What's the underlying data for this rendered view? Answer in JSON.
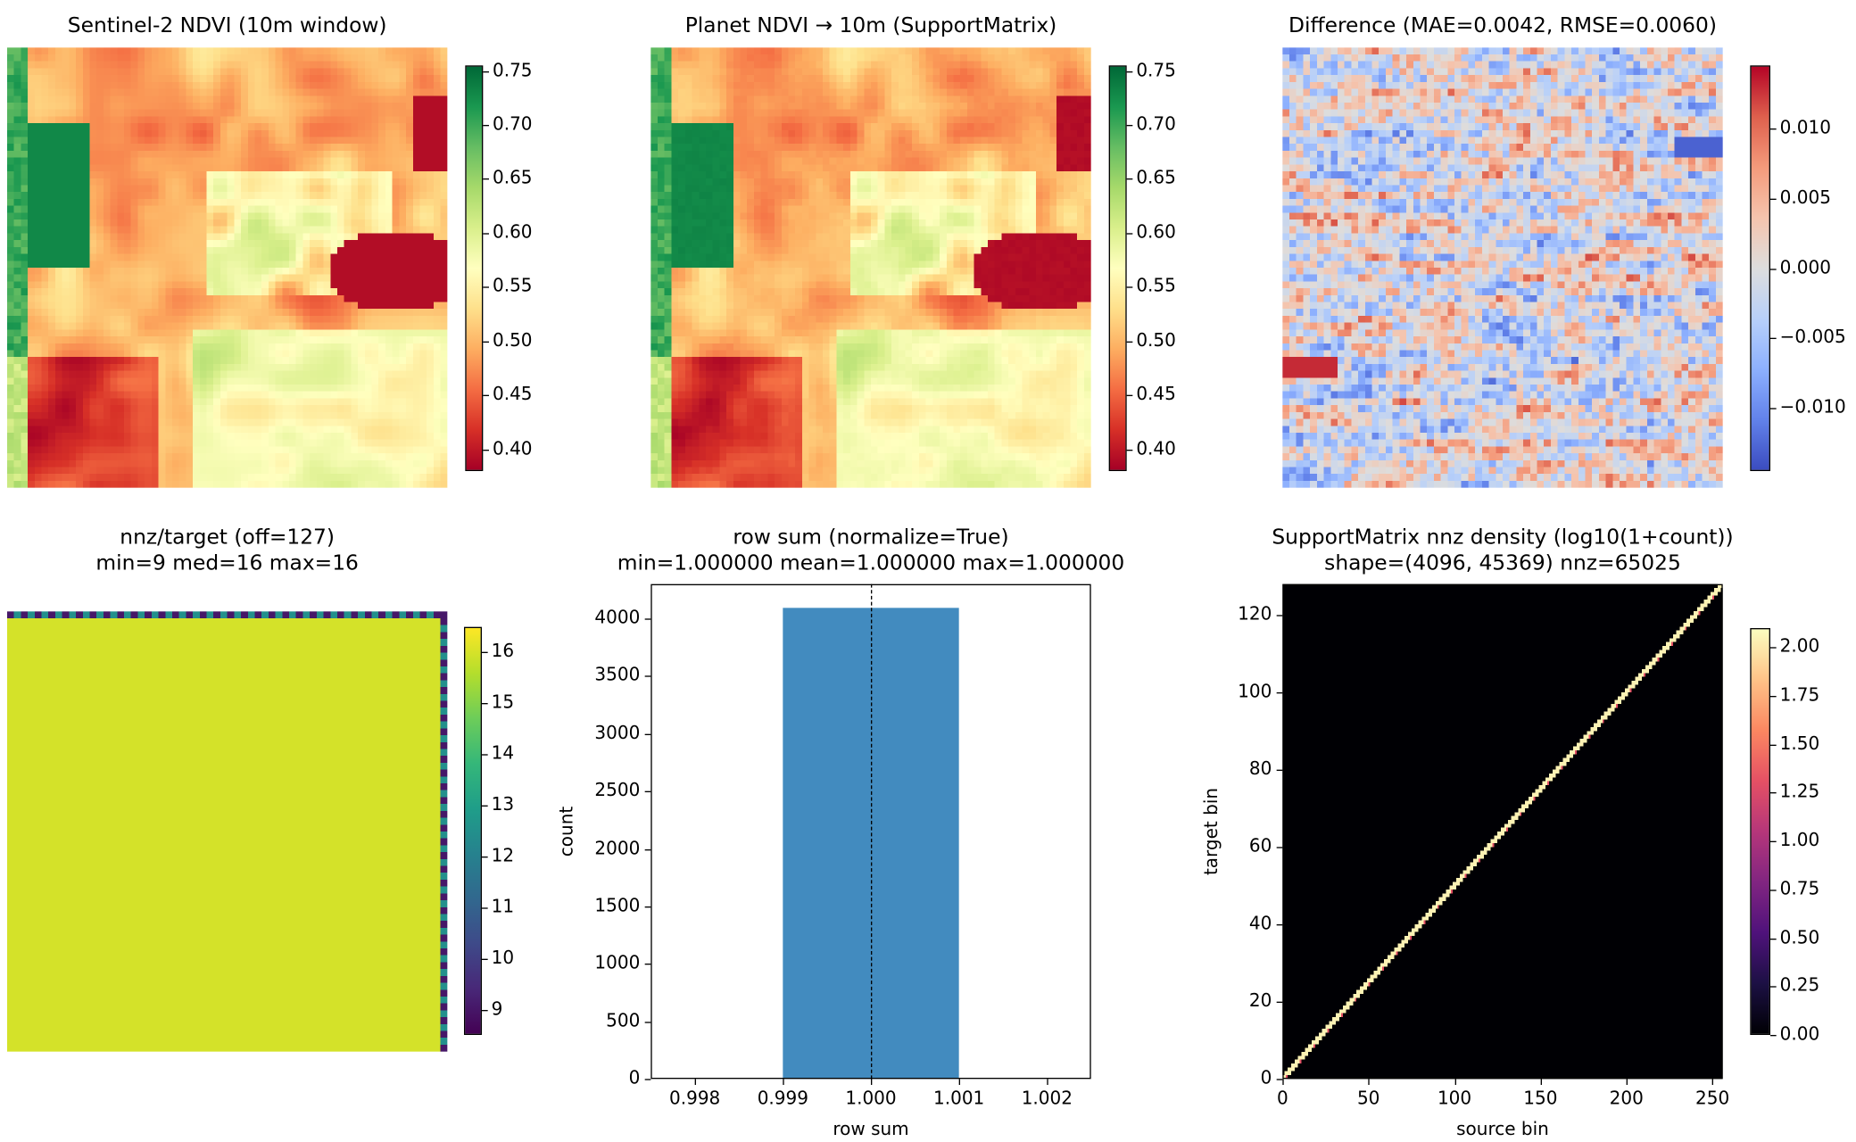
{
  "chart_data": [
    {
      "type": "heatmap",
      "title": "Sentinel-2 NDVI (10m window)",
      "colormap": "RdYlGn",
      "colorbar": {
        "range": [
          0.38,
          0.755
        ],
        "ticks": [
          "0.75",
          "0.70",
          "0.65",
          "0.60",
          "0.55",
          "0.50",
          "0.45",
          "0.40"
        ]
      }
    },
    {
      "type": "heatmap",
      "title": "Planet NDVI → 10m (SupportMatrix)",
      "colormap": "RdYlGn",
      "colorbar": {
        "range": [
          0.38,
          0.755
        ],
        "ticks": [
          "0.75",
          "0.70",
          "0.65",
          "0.60",
          "0.55",
          "0.50",
          "0.45",
          "0.40"
        ]
      }
    },
    {
      "type": "heatmap",
      "title": "Difference (MAE=0.0042, RMSE=0.0060)",
      "colormap": "coolwarm",
      "colorbar": {
        "range": [
          -0.0145,
          0.0145
        ],
        "ticks": [
          "0.010",
          "0.005",
          "0.000",
          "−0.005",
          "−0.010"
        ]
      }
    },
    {
      "type": "heatmap",
      "title": "nnz/target (off=127)",
      "subtitle": "min=9 med=16 max=16",
      "colormap": "viridis",
      "colorbar": {
        "range": [
          8.5,
          16.5
        ],
        "ticks": [
          "16",
          "15",
          "14",
          "13",
          "12",
          "11",
          "10",
          "9"
        ]
      }
    },
    {
      "type": "bar",
      "title": "row sum (normalize=True)",
      "subtitle": "min=1.000000 mean=1.000000 max=1.000000",
      "xlabel": "row sum",
      "ylabel": "count",
      "bins": [
        {
          "x0": 0.999,
          "x1": 1.001,
          "count": 4096
        }
      ],
      "vline": 1.0,
      "xlim": [
        0.9975,
        1.0025
      ],
      "ylim": [
        0,
        4300
      ],
      "xticks": [
        "0.998",
        "0.999",
        "1.000",
        "1.001",
        "1.002"
      ],
      "yticks": [
        "0",
        "500",
        "1000",
        "1500",
        "2000",
        "2500",
        "3000",
        "3500",
        "4000"
      ],
      "bar_color": "#428bbf"
    },
    {
      "type": "heatmap",
      "title": "SupportMatrix nnz density (log10(1+count))",
      "subtitle": "shape=(4096, 45369) nnz=65025",
      "xlabel": "source bin",
      "ylabel": "target bin",
      "xlim": [
        0,
        256
      ],
      "ylim": [
        0,
        128
      ],
      "xticks": [
        "0",
        "50",
        "100",
        "150",
        "200",
        "250"
      ],
      "yticks": [
        "0",
        "20",
        "40",
        "60",
        "80",
        "100",
        "120"
      ],
      "colormap": "magma",
      "colorbar": {
        "range": [
          0,
          2.1
        ],
        "ticks": [
          "2.00",
          "1.75",
          "1.50",
          "1.25",
          "1.00",
          "0.75",
          "0.50",
          "0.25",
          "0.00"
        ]
      }
    }
  ]
}
